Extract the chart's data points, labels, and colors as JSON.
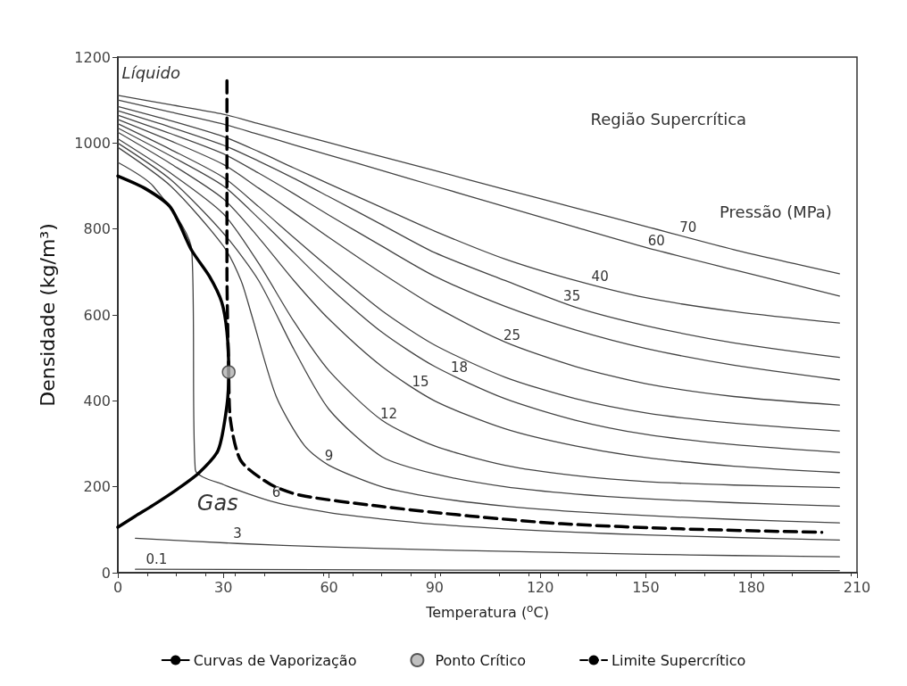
{
  "chart_data": {
    "type": "line",
    "xlabel": "Temperatura ($^{o}$C)",
    "ylabel": "Densidade (kg/m³)",
    "xlim": [
      0,
      210
    ],
    "xticks": [
      0,
      30,
      60,
      90,
      120,
      150,
      180,
      210
    ],
    "ylim": [
      0,
      1200
    ],
    "yticks": [
      0,
      200,
      400,
      600,
      800,
      1000,
      1200
    ],
    "legend": "bottom",
    "marker": "none",
    "annotations": [
      "Líquido",
      "Gas",
      "Região Supercrítica",
      "Pressão (MPa)",
      {
        "text": "70",
        "x": 162,
        "y": 780
      },
      {
        "text": "60",
        "x": 153,
        "y": 750
      },
      {
        "text": "40",
        "x": 137,
        "y": 666
      },
      {
        "text": "35",
        "x": 129,
        "y": 620
      },
      {
        "text": "25",
        "x": 112,
        "y": 530
      },
      {
        "text": "18",
        "x": 97,
        "y": 454
      },
      {
        "text": "15",
        "x": 86,
        "y": 421
      },
      {
        "text": "12",
        "x": 77,
        "y": 347
      },
      {
        "text": "9",
        "x": 60,
        "y": 250
      },
      {
        "text": "6",
        "x": 45,
        "y": 163
      },
      {
        "text": "3",
        "x": 34,
        "y": 68
      },
      {
        "text": "0.1",
        "x": 11,
        "y": 8
      }
    ],
    "series": [
      {
        "color": "#444444",
        "x": [
          0,
          15,
          30,
          40,
          50,
          60,
          75,
          90,
          110,
          130,
          150,
          175,
          205
        ],
        "values": [
          1111,
          1089,
          1067,
          1045,
          1023,
          1001,
          968,
          936,
          892,
          849,
          806,
          752,
          696
        ]
      },
      {
        "color": "#444444",
        "x": [
          0,
          15,
          30,
          40,
          50,
          60,
          75,
          90,
          110,
          130,
          150,
          175,
          205
        ],
        "values": [
          1100,
          1072,
          1044,
          1020,
          996,
          972,
          936,
          900,
          852,
          804,
          757,
          705,
          644
        ]
      },
      {
        "color": "#444444",
        "x": [
          0,
          15,
          30,
          40,
          50,
          60,
          75,
          90,
          110,
          130,
          150,
          175,
          205
        ],
        "values": [
          1085,
          1052,
          1015,
          980,
          942,
          905,
          850,
          795,
          730,
          680,
          640,
          608,
          581
        ]
      },
      {
        "color": "#444444",
        "x": [
          0,
          15,
          30,
          40,
          50,
          60,
          75,
          90,
          110,
          130,
          150,
          175,
          205
        ],
        "values": [
          1075,
          1037,
          995,
          958,
          918,
          875,
          810,
          745,
          680,
          618,
          575,
          535,
          501
        ]
      },
      {
        "color": "#444444",
        "x": [
          0,
          15,
          30,
          40,
          50,
          60,
          75,
          90,
          110,
          130,
          150,
          175,
          205
        ],
        "values": [
          1065,
          1022,
          975,
          930,
          882,
          832,
          760,
          690,
          620,
          565,
          522,
          483,
          449
        ]
      },
      {
        "color": "#444444",
        "x": [
          0,
          15,
          30,
          40,
          50,
          60,
          75,
          90,
          110,
          130,
          150,
          175,
          205
        ],
        "values": [
          1055,
          1005,
          950,
          895,
          838,
          780,
          697,
          620,
          537,
          480,
          440,
          410,
          390
        ]
      },
      {
        "color": "#444444",
        "x": [
          0,
          15,
          30,
          40,
          50,
          60,
          75,
          90,
          110,
          130,
          150,
          175,
          205
        ],
        "values": [
          1045,
          985,
          920,
          852,
          780,
          710,
          610,
          530,
          455,
          405,
          372,
          348,
          330
        ]
      },
      {
        "color": "#444444",
        "x": [
          0,
          15,
          30,
          40,
          50,
          60,
          75,
          90,
          110,
          130,
          150,
          175,
          205
        ],
        "values": [
          1035,
          970,
          900,
          825,
          745,
          665,
          560,
          480,
          405,
          355,
          322,
          298,
          280
        ]
      },
      {
        "color": "#444444",
        "x": [
          0,
          15,
          30,
          40,
          50,
          60,
          75,
          90,
          110,
          130,
          150,
          175,
          205
        ],
        "values": [
          1025,
          952,
          870,
          780,
          680,
          590,
          480,
          400,
          335,
          295,
          268,
          248,
          233
        ]
      },
      {
        "color": "#444444",
        "x": [
          0,
          15,
          30,
          40,
          50,
          60,
          75,
          90,
          110,
          130,
          150,
          175,
          205
        ],
        "values": [
          1010,
          930,
          835,
          720,
          585,
          470,
          355,
          295,
          250,
          226,
          212,
          204,
          198
        ]
      },
      {
        "color": "#444444",
        "x": [
          0,
          15,
          30,
          40,
          50,
          60,
          75,
          90,
          110,
          130,
          150,
          175,
          205
        ],
        "values": [
          1000,
          915,
          790,
          680,
          520,
          380,
          270,
          230,
          200,
          183,
          172,
          163,
          155
        ]
      },
      {
        "color": "#444444",
        "x": [
          0,
          15,
          30,
          35,
          38,
          45,
          53,
          60,
          75,
          90,
          110,
          130,
          150,
          175,
          205
        ],
        "values": [
          990,
          900,
          760,
          680,
          600,
          410,
          296,
          250,
          200,
          175,
          155,
          142,
          133,
          124,
          116
        ]
      },
      {
        "color": "#444444",
        "x": [
          0,
          10,
          21,
          22,
          30,
          45,
          60,
          75,
          90,
          110,
          130,
          150,
          175,
          205
        ],
        "values": [
          955,
          900,
          750,
          240,
          205,
          163,
          140,
          125,
          113,
          102,
          94,
          88,
          82,
          76
        ]
      },
      {
        "color": "#444444",
        "x": [
          5,
          34,
          60,
          90,
          120,
          150,
          175,
          205
        ],
        "values": [
          80,
          68,
          60,
          53,
          48,
          43,
          40,
          37
        ]
      },
      {
        "color": "#444444",
        "x": [
          5,
          100,
          205
        ],
        "values": [
          8,
          6,
          5
        ]
      },
      {
        "name": "Curvas de Vaporização",
        "color": "#000000",
        "x": [
          0,
          8,
          15,
          21,
          26,
          29.5,
          31,
          31.5,
          31,
          28.5,
          23,
          17,
          10,
          5,
          0
        ],
        "values": [
          923,
          893,
          850,
          750,
          690,
          630,
          560,
          467,
          390,
          285,
          232,
          195,
          157,
          132,
          106
        ]
      },
      {
        "name": "Ponto Crítico",
        "type": "scatter",
        "marker": "circle",
        "color": "#b0b0b0",
        "x": [
          31.5
        ],
        "values": [
          467
        ]
      },
      {
        "name": "Limite Supercrítico",
        "color": "#000000",
        "line_style": "dashed",
        "x": [
          31,
          31,
          31.5,
          32,
          35,
          43.5,
          52,
          74,
          100,
          126,
          160,
          200
        ],
        "values": [
          1145,
          700,
          470,
          355,
          260,
          205,
          180,
          155,
          132,
          114,
          102,
          94
        ]
      }
    ]
  }
}
